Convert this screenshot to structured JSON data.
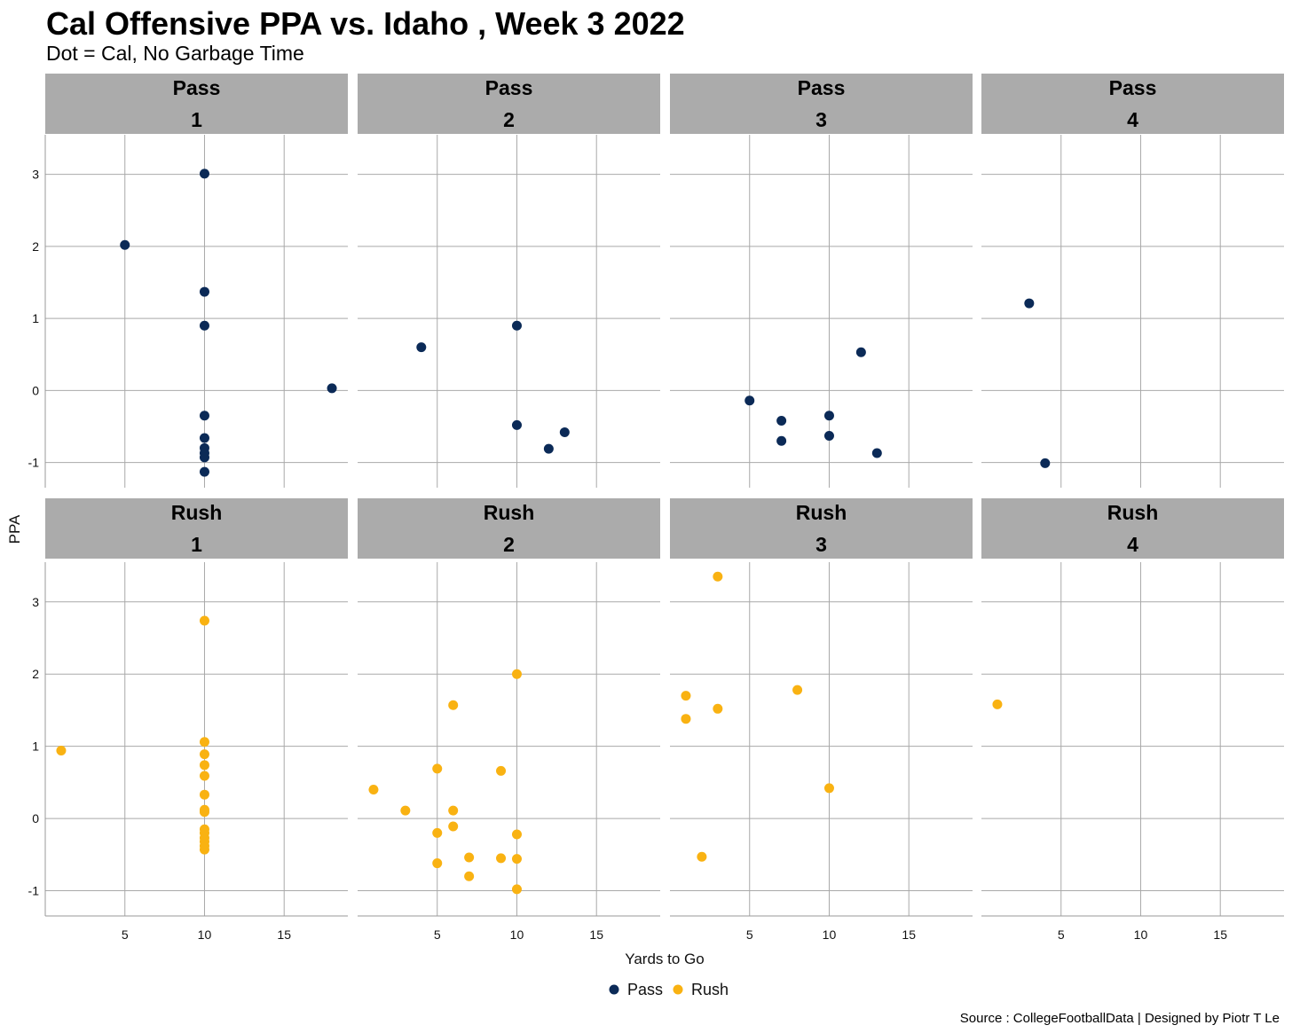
{
  "header": {
    "title": "Cal Offensive PPA vs. Idaho , Week 3 2022",
    "subtitle": "Dot = Cal, No Garbage Time"
  },
  "caption": "Source : CollegeFootballData | Designed by Piotr T Le",
  "colors": {
    "Pass": "#0b2a57",
    "Rush": "#f9b212",
    "strip": "#ababab",
    "grid": "#a9a9a9"
  },
  "chart_data": {
    "type": "scatter",
    "title": "Cal Offensive PPA vs. Idaho , Week 3 2022",
    "subtitle": "Dot = Cal, No Garbage Time",
    "xlabel": "Yards to Go",
    "ylabel": "PPA",
    "xlim": [
      0,
      19
    ],
    "ylim": [
      -1.35,
      3.55
    ],
    "xticks": [
      5,
      10,
      15
    ],
    "yticks": [
      -1,
      0,
      1,
      2,
      3
    ],
    "legend": {
      "position": "bottom",
      "entries": [
        "Pass",
        "Rush"
      ]
    },
    "panels": [
      {
        "play_type": "Pass",
        "down": "1",
        "points": [
          [
            5,
            2.02
          ],
          [
            10,
            3.01
          ],
          [
            10,
            1.37
          ],
          [
            10,
            0.9
          ],
          [
            10,
            -0.35
          ],
          [
            10,
            -0.66
          ],
          [
            10,
            -0.8
          ],
          [
            10,
            -0.87
          ],
          [
            10,
            -0.93
          ],
          [
            10,
            -1.13
          ],
          [
            18,
            0.03
          ]
        ]
      },
      {
        "play_type": "Pass",
        "down": "2",
        "points": [
          [
            4,
            0.6
          ],
          [
            10,
            0.9
          ],
          [
            10,
            -0.48
          ],
          [
            12,
            -0.81
          ],
          [
            13,
            -0.58
          ]
        ]
      },
      {
        "play_type": "Pass",
        "down": "3",
        "points": [
          [
            5,
            -0.14
          ],
          [
            7,
            -0.42
          ],
          [
            7,
            -0.7
          ],
          [
            10,
            -0.35
          ],
          [
            10,
            -0.63
          ],
          [
            12,
            0.53
          ],
          [
            13,
            -0.87
          ]
        ]
      },
      {
        "play_type": "Pass",
        "down": "4",
        "points": [
          [
            3,
            1.21
          ],
          [
            4,
            -1.01
          ]
        ]
      },
      {
        "play_type": "Rush",
        "down": "1",
        "points": [
          [
            1,
            0.94
          ],
          [
            10,
            2.74
          ],
          [
            10,
            1.06
          ],
          [
            10,
            0.89
          ],
          [
            10,
            0.74
          ],
          [
            10,
            0.59
          ],
          [
            10,
            0.33
          ],
          [
            10,
            0.12
          ],
          [
            10,
            0.09
          ],
          [
            10,
            -0.15
          ],
          [
            10,
            -0.2
          ],
          [
            10,
            -0.27
          ],
          [
            10,
            -0.32
          ],
          [
            10,
            -0.38
          ],
          [
            10,
            -0.43
          ]
        ]
      },
      {
        "play_type": "Rush",
        "down": "2",
        "points": [
          [
            1,
            0.4
          ],
          [
            3,
            0.11
          ],
          [
            5,
            0.69
          ],
          [
            5,
            -0.2
          ],
          [
            5,
            -0.62
          ],
          [
            6,
            1.57
          ],
          [
            6,
            0.11
          ],
          [
            6,
            -0.11
          ],
          [
            7,
            -0.54
          ],
          [
            7,
            -0.8
          ],
          [
            9,
            0.66
          ],
          [
            9,
            -0.55
          ],
          [
            10,
            2.0
          ],
          [
            10,
            -0.22
          ],
          [
            10,
            -0.56
          ],
          [
            10,
            -0.98
          ]
        ]
      },
      {
        "play_type": "Rush",
        "down": "3",
        "points": [
          [
            1,
            1.7
          ],
          [
            1,
            1.38
          ],
          [
            2,
            -0.53
          ],
          [
            3,
            3.35
          ],
          [
            3,
            1.52
          ],
          [
            8,
            1.78
          ],
          [
            10,
            0.42
          ]
        ]
      },
      {
        "play_type": "Rush",
        "down": "4",
        "points": [
          [
            1,
            1.58
          ]
        ]
      }
    ]
  }
}
